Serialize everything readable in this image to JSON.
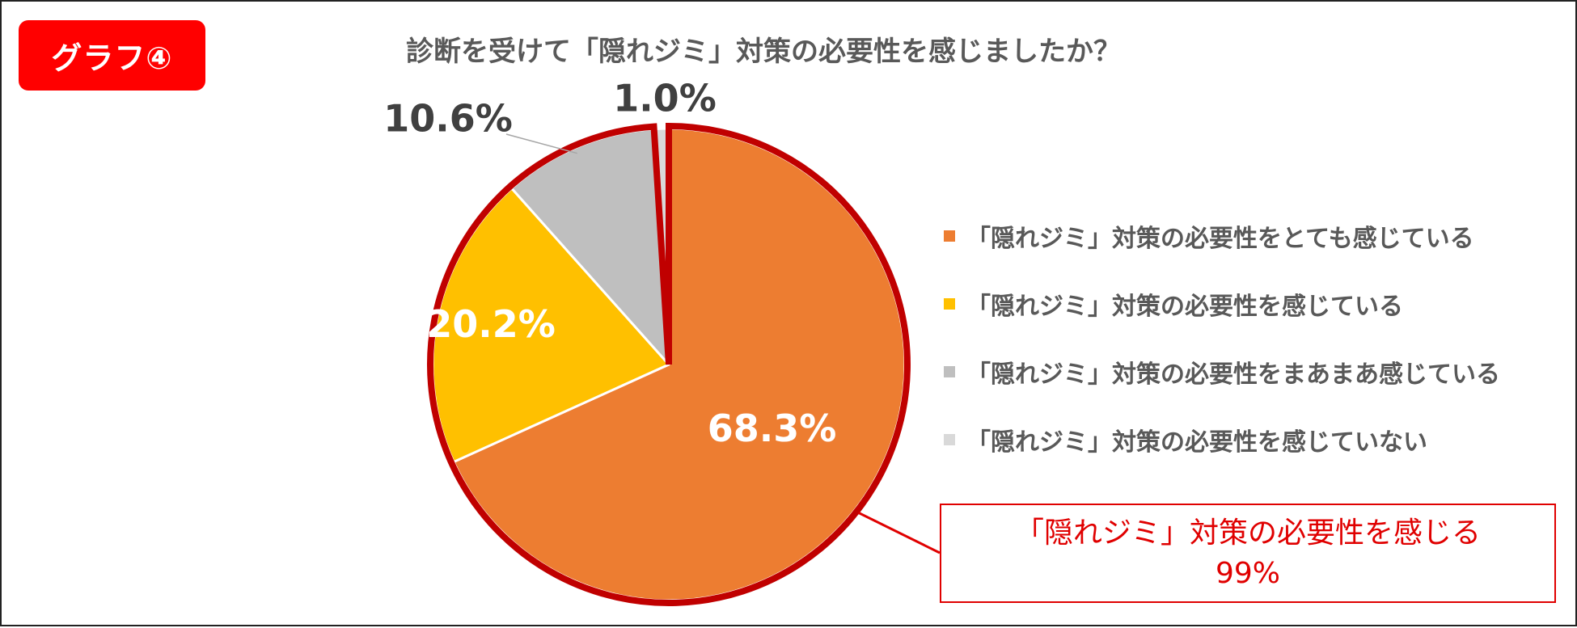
{
  "badge": {
    "label": "グラフ④",
    "color": "#ff0000"
  },
  "title": "診断を受けて「隠れジミ」対策の必要性を感じましたか？",
  "chart_data": {
    "type": "pie",
    "title": "診断を受けて「隠れジミ」対策の必要性を感じましたか？",
    "labels": [
      "「隠れジミ」対策の必要性をとても感じている",
      "「隠れジミ」対策の必要性を感じている",
      "「隠れジミ」対策の必要性をまあまあ感じている",
      "「隠れジミ」対策の必要性を感じていない"
    ],
    "values": [
      68.3,
      20.2,
      10.6,
      1.0
    ],
    "data_labels": [
      "68.3%",
      "20.2%",
      "10.6%",
      "1.0%"
    ],
    "colors": [
      "#ed7d31",
      "#ffc000",
      "#bfbfbf",
      "#d9d9d9"
    ],
    "highlight_color": "#c00000",
    "legend_position": "right"
  },
  "callout": {
    "line1": "「隠れジミ」対策の必要性を感じる",
    "line2": "99%",
    "color": "#e00000"
  }
}
